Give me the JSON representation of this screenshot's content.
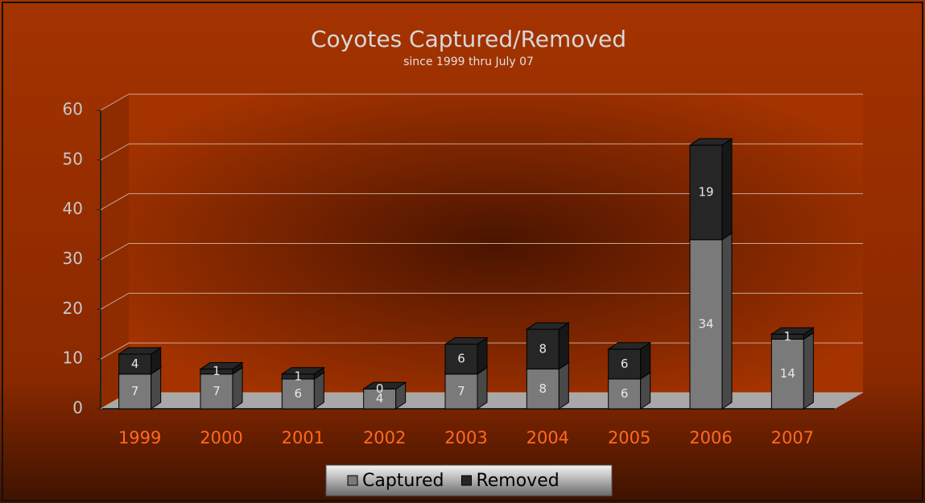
{
  "chart_data": {
    "type": "bar",
    "stacked": true,
    "title": "Coyotes Captured/Removed",
    "subtitle": "since 1999 thru July 07",
    "categories": [
      "1999",
      "2000",
      "2001",
      "2002",
      "2003",
      "2004",
      "2005",
      "2006",
      "2007"
    ],
    "series": [
      {
        "name": "Captured",
        "color": "#7a7a7a",
        "values": [
          7,
          7,
          6,
          4,
          7,
          8,
          6,
          34,
          14
        ]
      },
      {
        "name": "Removed",
        "color": "#262626",
        "values": [
          4,
          1,
          1,
          0,
          6,
          8,
          6,
          19,
          1
        ]
      }
    ],
    "ylim": [
      0,
      60
    ],
    "yticks": [
      0,
      10,
      20,
      30,
      40,
      50,
      60
    ],
    "grid": true,
    "legend": "bottom"
  }
}
